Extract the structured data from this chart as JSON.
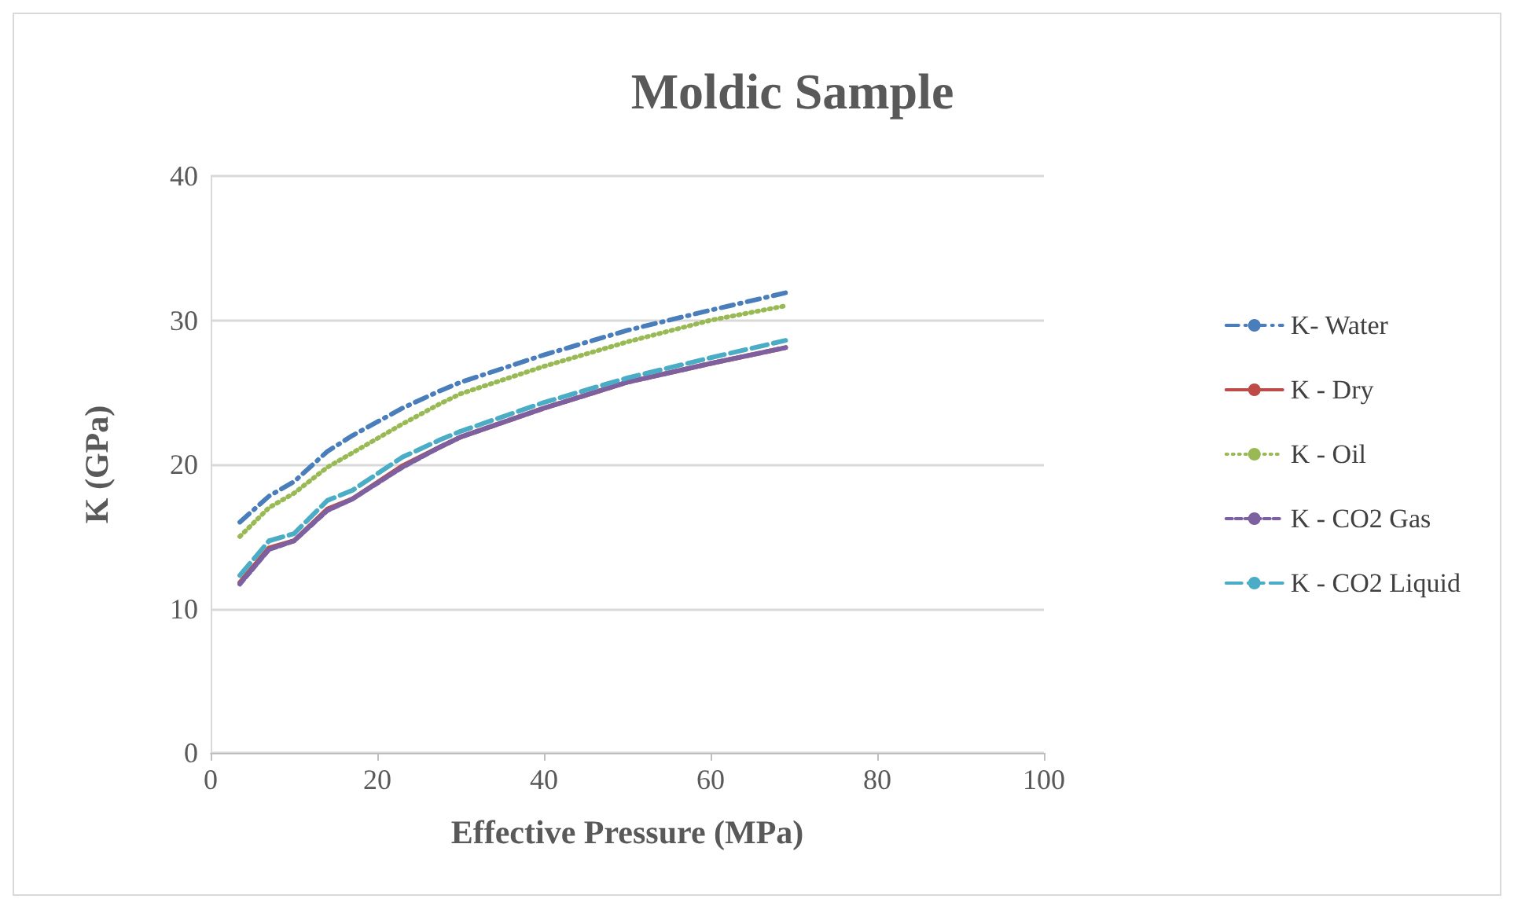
{
  "chart_data": {
    "type": "line",
    "title": "Moldic Sample",
    "xlabel": "Effective Pressure (MPa)",
    "ylabel": "K (GPa)",
    "x": [
      3.5,
      7,
      10,
      14,
      17,
      23,
      27.5,
      30,
      40,
      50,
      60,
      69
    ],
    "series": [
      {
        "name": "K- Water",
        "color": "#4a7ebb",
        "line_style": "dashdot",
        "values": [
          16.0,
          17.8,
          18.8,
          20.9,
          22.0,
          23.9,
          25.1,
          25.7,
          27.6,
          29.3,
          30.7,
          31.9
        ]
      },
      {
        "name": "K - Dry",
        "color": "#be4b48",
        "line_style": "solid",
        "values": [
          11.8,
          14.2,
          14.7,
          16.9,
          17.6,
          19.9,
          21.2,
          21.9,
          23.9,
          25.7,
          27.0,
          28.1
        ]
      },
      {
        "name": "K - Oil",
        "color": "#98b954",
        "line_style": "dotted",
        "values": [
          15.0,
          17.0,
          18.0,
          19.8,
          20.8,
          22.8,
          24.2,
          24.9,
          26.8,
          28.5,
          30.0,
          31.0
        ]
      },
      {
        "name": "K - CO2 Gas",
        "color": "#7d60a0",
        "line_style": "dashed",
        "values": [
          11.7,
          14.1,
          14.7,
          16.8,
          17.6,
          19.8,
          21.2,
          21.9,
          23.9,
          25.7,
          27.0,
          28.1
        ]
      },
      {
        "name": "K - CO2 Liquid",
        "color": "#4bacc6",
        "line_style": "longdash",
        "values": [
          12.3,
          14.7,
          15.2,
          17.5,
          18.2,
          20.5,
          21.7,
          22.3,
          24.3,
          26.0,
          27.4,
          28.6
        ]
      }
    ],
    "xlim": [
      0,
      100
    ],
    "xticks": [
      0,
      20,
      40,
      60,
      80,
      100
    ],
    "ylim": [
      0,
      40
    ],
    "yticks": [
      0,
      10,
      20,
      30,
      40
    ],
    "grid": "y",
    "legend": "right",
    "marker": "none"
  }
}
